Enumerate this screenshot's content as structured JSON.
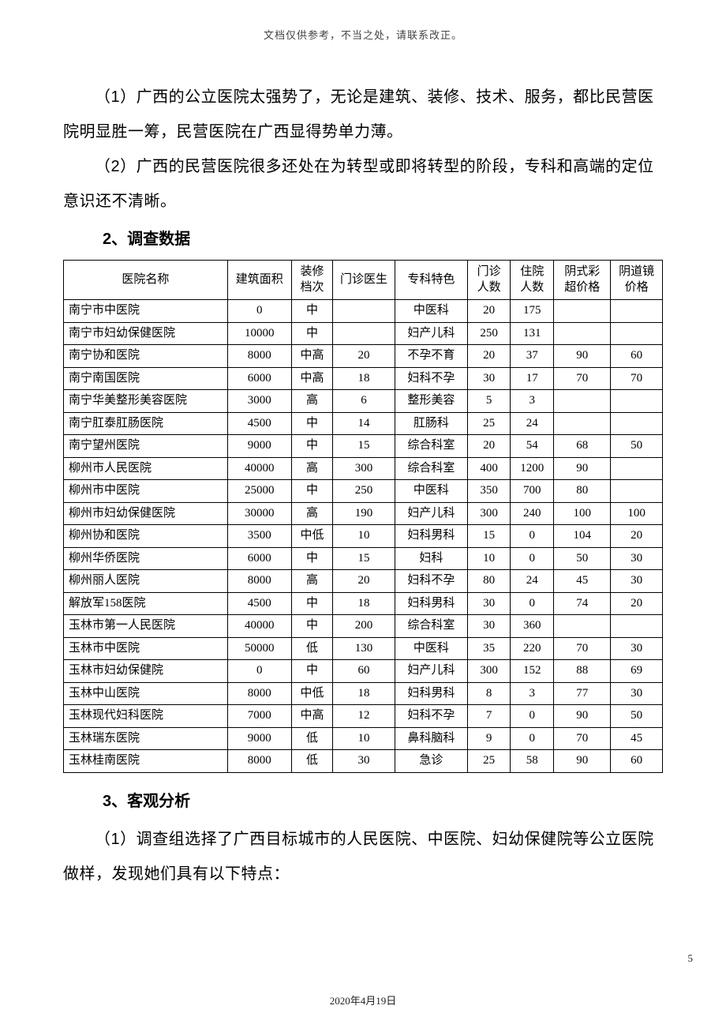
{
  "header_note": "文档仅供参考，不当之处，请联系改正。",
  "paragraphs": {
    "p1": "（1）广西的公立医院太强势了，无论是建筑、装修、技术、服务，都比民营医院明显胜一筹，民营医院在广西显得势单力薄。",
    "p2": "（2）广西的民营医院很多还处在为转型或即将转型的阶段，专科和高端的定位意识还不清晰。",
    "h2": "2、调查数据",
    "h3": "3、客观分析",
    "p3": "（1）调查组选择了广西目标城市的人民医院、中医院、妇幼保健院等公立医院做样，发现她们具有以下特点："
  },
  "table": {
    "columns": [
      "医院名称",
      "建筑面积",
      "装修档次",
      "门诊医生",
      "专科特色",
      "门诊人数",
      "住院人数",
      "阴式彩超价格",
      "阴道镜价格"
    ],
    "col_widths": [
      "190px",
      "74px",
      "48px",
      "72px",
      "84px",
      "50px",
      "50px",
      "66px",
      "60px"
    ],
    "rows": [
      [
        "南宁市中医院",
        "0",
        "中",
        "",
        "中医科",
        "20",
        "175",
        "",
        ""
      ],
      [
        "南宁市妇幼保健医院",
        "10000",
        "中",
        "",
        "妇产儿科",
        "250",
        "131",
        "",
        ""
      ],
      [
        "南宁协和医院",
        "8000",
        "中高",
        "20",
        "不孕不育",
        "20",
        "37",
        "90",
        "60"
      ],
      [
        "南宁南国医院",
        "6000",
        "中高",
        "18",
        "妇科不孕",
        "30",
        "17",
        "70",
        "70"
      ],
      [
        "南宁华美整形美容医院",
        "3000",
        "高",
        "6",
        "整形美容",
        "5",
        "3",
        "",
        ""
      ],
      [
        "南宁肛泰肛肠医院",
        "4500",
        "中",
        "14",
        "肛肠科",
        "25",
        "24",
        "",
        ""
      ],
      [
        "南宁望州医院",
        "9000",
        "中",
        "15",
        "综合科室",
        "20",
        "54",
        "68",
        "50"
      ],
      [
        "柳州市人民医院",
        "40000",
        "高",
        "300",
        "综合科室",
        "400",
        "1200",
        "90",
        ""
      ],
      [
        "柳州市中医院",
        "25000",
        "中",
        "250",
        "中医科",
        "350",
        "700",
        "80",
        ""
      ],
      [
        "柳州市妇幼保健医院",
        "30000",
        "高",
        "190",
        "妇产儿科",
        "300",
        "240",
        "100",
        "100"
      ],
      [
        "柳州协和医院",
        "3500",
        "中低",
        "10",
        "妇科男科",
        "15",
        "0",
        "104",
        "20"
      ],
      [
        "柳州华侨医院",
        "6000",
        "中",
        "15",
        "妇科",
        "10",
        "0",
        "50",
        "30"
      ],
      [
        "柳州丽人医院",
        "8000",
        "高",
        "20",
        "妇科不孕",
        "80",
        "24",
        "45",
        "30"
      ],
      [
        "解放军158医院",
        "4500",
        "中",
        "18",
        "妇科男科",
        "30",
        "0",
        "74",
        "20"
      ],
      [
        "玉林市第一人民医院",
        "40000",
        "中",
        "200",
        "综合科室",
        "30",
        "360",
        "",
        ""
      ],
      [
        "玉林市中医院",
        "50000",
        "低",
        "130",
        "中医科",
        "35",
        "220",
        "70",
        "30"
      ],
      [
        "玉林市妇幼保健院",
        "0",
        "中",
        "60",
        "妇产儿科",
        "300",
        "152",
        "88",
        "69"
      ],
      [
        "玉林中山医院",
        "8000",
        "中低",
        "18",
        "妇科男科",
        "8",
        "3",
        "77",
        "30"
      ],
      [
        "玉林现代妇科医院",
        "7000",
        "中高",
        "12",
        "妇科不孕",
        "7",
        "0",
        "90",
        "50"
      ],
      [
        "玉林瑞东医院",
        "9000",
        "低",
        "10",
        "鼻科脑科",
        "9",
        "0",
        "70",
        "45"
      ],
      [
        "玉林桂南医院",
        "8000",
        "低",
        "30",
        "急诊",
        "25",
        "58",
        "90",
        "60"
      ]
    ]
  },
  "footer": {
    "date": "2020年4月19日",
    "page": "5"
  }
}
